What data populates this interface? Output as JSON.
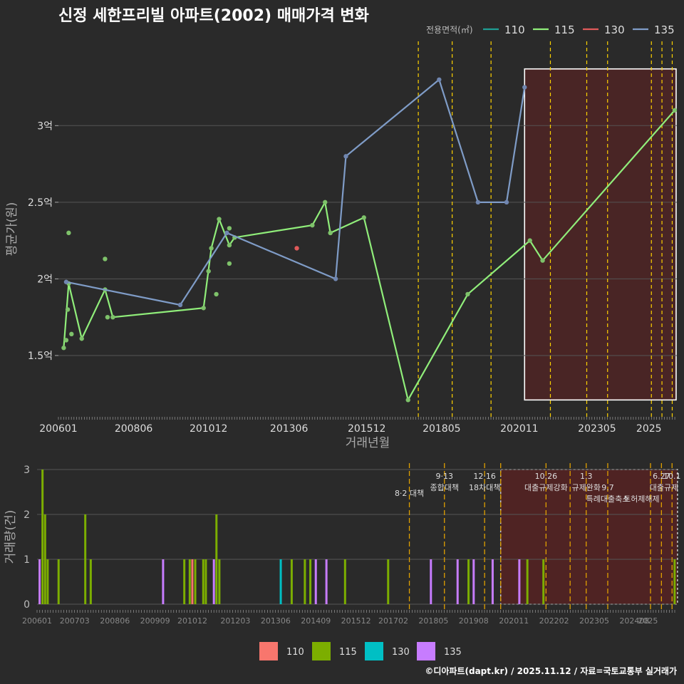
{
  "title": "신정 세한프리빌 아파트(2002) 매매가격 변화",
  "footer": "©디아파트(dapt.kr) / 2025.11.12 / 자료=국토교통부 실거래가",
  "colors": {
    "bg": "#2a2a2a",
    "grid": "#555555",
    "text": "#dddddd",
    "s110_line": "#1f9e94",
    "s115_line": "#90ee7a",
    "s130_line": "#e05a5a",
    "s135_line": "#7f9cc7",
    "b110": "#f8766d",
    "b115": "#7cae00",
    "b130": "#00bfc4",
    "b135": "#c77cff",
    "policy": "#ffd200",
    "policy_bottom": "#e0a000",
    "region": "#6e1e1e"
  },
  "chart_data": [
    {
      "type": "line",
      "title": "",
      "xlabel": "거래년월",
      "ylabel": "평균가(원)",
      "xlim": [
        2006.0,
        2025.9
      ],
      "ylim": [
        1.1,
        3.55
      ],
      "y_ticks": [
        {
          "v": 1.5,
          "label": "1.5억"
        },
        {
          "v": 2.0,
          "label": "2억"
        },
        {
          "v": 2.5,
          "label": "2.5억"
        },
        {
          "v": 3.0,
          "label": "3억"
        }
      ],
      "x_ticks": [
        {
          "v": 2006.0,
          "label": "200601"
        },
        {
          "v": 2008.42,
          "label": "200806"
        },
        {
          "v": 2010.83,
          "label": "201012"
        },
        {
          "v": 2013.42,
          "label": "201306"
        },
        {
          "v": 2015.92,
          "label": "201512"
        },
        {
          "v": 2018.33,
          "label": "201805"
        },
        {
          "v": 2020.83,
          "label": "202011"
        },
        {
          "v": 2023.33,
          "label": "202305"
        },
        {
          "v": 2025.0,
          "label": "2025"
        }
      ],
      "legend_title": "전용면적(㎡)",
      "legend": [
        "110",
        "115",
        "130",
        "135"
      ],
      "series": [
        {
          "name": "115",
          "line": [
            [
              2006.17,
              1.55
            ],
            [
              2006.33,
              1.97
            ],
            [
              2006.75,
              1.61
            ],
            [
              2007.5,
              1.93
            ],
            [
              2007.75,
              1.75
            ],
            [
              2010.67,
              1.81
            ],
            [
              2010.92,
              2.2
            ],
            [
              2011.17,
              2.39
            ],
            [
              2011.5,
              2.22
            ],
            [
              2011.67,
              2.27
            ],
            [
              2014.17,
              2.35
            ],
            [
              2014.58,
              2.5
            ],
            [
              2014.75,
              2.3
            ],
            [
              2015.83,
              2.4
            ],
            [
              2017.25,
              1.21
            ],
            [
              2019.17,
              1.9
            ],
            [
              2021.17,
              2.25
            ],
            [
              2021.58,
              2.12
            ],
            [
              2025.83,
              3.1
            ]
          ],
          "extra_points": [
            [
              2006.25,
              1.6
            ],
            [
              2006.3,
              1.8
            ],
            [
              2006.42,
              1.64
            ],
            [
              2006.33,
              2.3
            ],
            [
              2007.5,
              2.13
            ],
            [
              2007.58,
              1.75
            ],
            [
              2010.83,
              2.05
            ],
            [
              2011.08,
              1.9
            ],
            [
              2011.5,
              2.33
            ],
            [
              2011.5,
              2.1
            ],
            [
              2014.75,
              2.3
            ]
          ]
        },
        {
          "name": "130",
          "line": [],
          "extra_points": [
            [
              2013.67,
              2.2
            ]
          ]
        },
        {
          "name": "135",
          "line": [
            [
              2006.25,
              1.98
            ],
            [
              2009.92,
              1.83
            ],
            [
              2011.42,
              2.3
            ],
            [
              2014.92,
              2.0
            ],
            [
              2015.25,
              2.8
            ],
            [
              2018.25,
              3.3
            ],
            [
              2019.5,
              2.5
            ],
            [
              2020.42,
              2.5
            ],
            [
              2021.0,
              3.25
            ]
          ],
          "extra_points": []
        }
      ],
      "policy_lines": [
        2017.58,
        2018.67,
        2019.92,
        2021.83,
        2023.0,
        2023.67,
        2025.08,
        2025.42,
        2025.75
      ],
      "highlight_range": [
        2021.0,
        2025.83
      ]
    },
    {
      "type": "bar",
      "ylabel": "거래량(건)",
      "ylim": [
        0,
        3
      ],
      "y_ticks": [
        0,
        1,
        2,
        3
      ],
      "x_ticks": [
        {
          "v": 2006.0,
          "label": "200601"
        },
        {
          "v": 2007.17,
          "label": "200703"
        },
        {
          "v": 2008.42,
          "label": "200806"
        },
        {
          "v": 2009.67,
          "label": "200909"
        },
        {
          "v": 2010.83,
          "label": "201012"
        },
        {
          "v": 2012.17,
          "label": "201203"
        },
        {
          "v": 2013.42,
          "label": "201306"
        },
        {
          "v": 2014.67,
          "label": "201409"
        },
        {
          "v": 2015.92,
          "label": "201512"
        },
        {
          "v": 2017.08,
          "label": "201702"
        },
        {
          "v": 2018.33,
          "label": "201805"
        },
        {
          "v": 2019.58,
          "label": "201908"
        },
        {
          "v": 2020.83,
          "label": "202011"
        },
        {
          "v": 2022.08,
          "label": "202202"
        },
        {
          "v": 2023.33,
          "label": "202305"
        },
        {
          "v": 2024.58,
          "label": "202408"
        },
        {
          "v": 2025.0,
          "label": "2025"
        }
      ],
      "legend": [
        "110",
        "115",
        "130",
        "135"
      ],
      "bars": [
        {
          "x": 2006.08,
          "s": "135",
          "v": 1
        },
        {
          "x": 2006.17,
          "s": "115",
          "v": 3
        },
        {
          "x": 2006.25,
          "s": "115",
          "v": 2
        },
        {
          "x": 2006.33,
          "s": "115",
          "v": 1
        },
        {
          "x": 2006.67,
          "s": "115",
          "v": 1
        },
        {
          "x": 2007.5,
          "s": "115",
          "v": 2
        },
        {
          "x": 2007.67,
          "s": "115",
          "v": 1
        },
        {
          "x": 2009.92,
          "s": "135",
          "v": 1
        },
        {
          "x": 2010.58,
          "s": "115",
          "v": 1
        },
        {
          "x": 2010.75,
          "s": "115",
          "v": 1
        },
        {
          "x": 2010.83,
          "s": "110",
          "v": 1
        },
        {
          "x": 2010.92,
          "s": "115",
          "v": 1
        },
        {
          "x": 2011.17,
          "s": "115",
          "v": 1
        },
        {
          "x": 2011.25,
          "s": "115",
          "v": 1
        },
        {
          "x": 2011.5,
          "s": "135",
          "v": 1
        },
        {
          "x": 2011.58,
          "s": "115",
          "v": 2
        },
        {
          "x": 2011.67,
          "s": "115",
          "v": 1
        },
        {
          "x": 2013.58,
          "s": "130",
          "v": 1
        },
        {
          "x": 2013.92,
          "s": "115",
          "v": 1
        },
        {
          "x": 2014.33,
          "s": "115",
          "v": 1
        },
        {
          "x": 2014.5,
          "s": "115",
          "v": 1
        },
        {
          "x": 2014.67,
          "s": "135",
          "v": 1
        },
        {
          "x": 2015.0,
          "s": "135",
          "v": 1
        },
        {
          "x": 2015.58,
          "s": "115",
          "v": 1
        },
        {
          "x": 2016.92,
          "s": "115",
          "v": 1
        },
        {
          "x": 2018.25,
          "s": "135",
          "v": 1
        },
        {
          "x": 2019.08,
          "s": "135",
          "v": 1
        },
        {
          "x": 2019.42,
          "s": "115",
          "v": 1
        },
        {
          "x": 2019.58,
          "s": "135",
          "v": 1
        },
        {
          "x": 2020.17,
          "s": "135",
          "v": 1
        },
        {
          "x": 2021.0,
          "s": "135",
          "v": 1
        },
        {
          "x": 2021.25,
          "s": "115",
          "v": 1
        },
        {
          "x": 2021.75,
          "s": "115",
          "v": 1
        },
        {
          "x": 2025.83,
          "s": "115",
          "v": 1
        }
      ],
      "policy_lines": [
        2017.58,
        2018.67,
        2019.92,
        2020.42,
        2021.83,
        2022.58,
        2023.08,
        2023.75,
        2025.08,
        2025.42,
        2025.75
      ],
      "annotations": [
        {
          "x": 2017.58,
          "row": 3,
          "text": "8·2 대책"
        },
        {
          "x": 2018.67,
          "row": 0,
          "text": "9·13"
        },
        {
          "x": 2018.67,
          "row": 2,
          "text": "종합대책"
        },
        {
          "x": 2019.92,
          "row": 0,
          "text": "12·16"
        },
        {
          "x": 2019.92,
          "row": 2,
          "text": "18차대책"
        },
        {
          "x": 2021.83,
          "row": 0,
          "text": "10.26"
        },
        {
          "x": 2021.83,
          "row": 2,
          "text": "대출규제강화"
        },
        {
          "x": 2023.08,
          "row": 0,
          "text": "1.3"
        },
        {
          "x": 2023.08,
          "row": 2,
          "text": "규제완화"
        },
        {
          "x": 2023.75,
          "row": 2,
          "text": "9.7"
        },
        {
          "x": 2023.75,
          "row": 4,
          "text": "특례대출축소"
        },
        {
          "x": 2024.8,
          "row": 4,
          "text": "토허제해제"
        },
        {
          "x": 2025.42,
          "row": 0,
          "text": "6.27"
        },
        {
          "x": 2025.75,
          "row": 0,
          "text": "10.1"
        },
        {
          "x": 2025.5,
          "row": 2,
          "text": "대출규제"
        }
      ],
      "highlight_range": [
        2020.42,
        2025.83
      ]
    }
  ]
}
